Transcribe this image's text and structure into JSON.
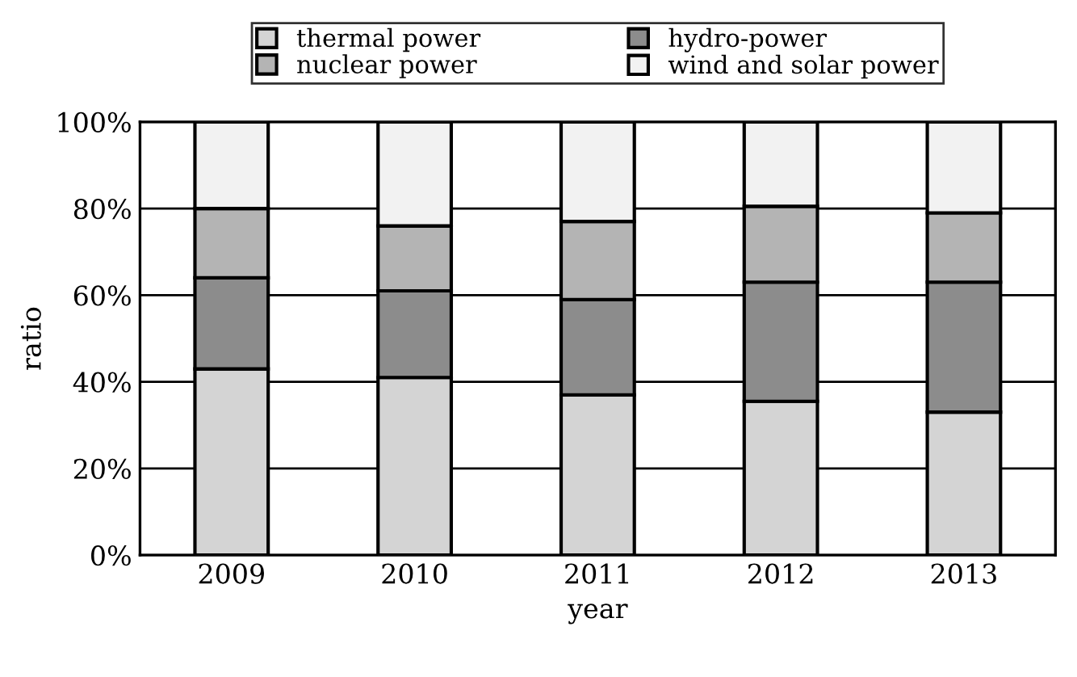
{
  "chart_data": {
    "type": "bar",
    "stacked": true,
    "xlabel": "year",
    "ylabel": "ratio",
    "categories": [
      "2009",
      "2010",
      "2011",
      "2012",
      "2013"
    ],
    "series": [
      {
        "name": "thermal power",
        "color": "#d4d4d4",
        "values": [
          43,
          41,
          37,
          35.5,
          33
        ]
      },
      {
        "name": "hydro-power",
        "color": "#8c8c8c",
        "values": [
          21,
          20,
          22,
          27.5,
          30
        ]
      },
      {
        "name": "nuclear power",
        "color": "#b4b4b4",
        "values": [
          16,
          15,
          18,
          17.5,
          16
        ]
      },
      {
        "name": "wind and solar power",
        "color": "#f2f2f2",
        "values": [
          20,
          24,
          23,
          19.5,
          21
        ]
      }
    ],
    "ylim": [
      0,
      100
    ],
    "yticks": [
      {
        "value": 0,
        "label": "0%"
      },
      {
        "value": 20,
        "label": "20%"
      },
      {
        "value": 40,
        "label": "40%"
      },
      {
        "value": 60,
        "label": "60%"
      },
      {
        "value": 80,
        "label": "80%"
      },
      {
        "value": 100,
        "label": "100%"
      }
    ],
    "grid": "y",
    "legend": "top"
  }
}
